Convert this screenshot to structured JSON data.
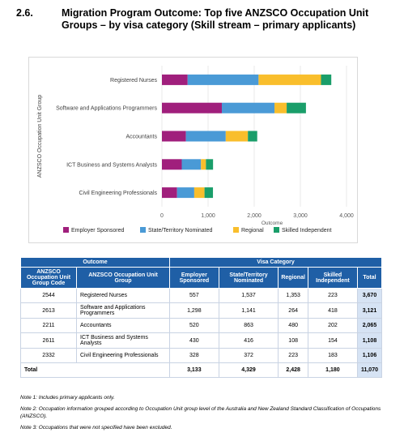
{
  "heading": {
    "number": "2.6.",
    "title": "Migration Program Outcome: Top five ANZSCO Occupation Unit Groups – by visa category (Skill stream – primary applicants)"
  },
  "colors": {
    "employer": "#a01f7c",
    "state": "#4a9ad6",
    "regional": "#f9be2c",
    "skilled": "#1a9e6a",
    "table_header": "#1f5fa6",
    "total_cell": "#d6e3f4"
  },
  "chart_data": {
    "type": "bar",
    "orientation": "horizontal",
    "stacked": true,
    "categories": [
      "Registered Nurses",
      "Software and Applications Programmers",
      "Accountants",
      "ICT Business and Systems Analysts",
      "Civil Engineering Professionals"
    ],
    "series": [
      {
        "name": "Employer Sponsored",
        "values": [
          557,
          1298,
          520,
          430,
          328
        ]
      },
      {
        "name": "State/Territory Nominated",
        "values": [
          1537,
          1141,
          863,
          416,
          372
        ]
      },
      {
        "name": "Regional",
        "values": [
          1353,
          264,
          480,
          108,
          223
        ]
      },
      {
        "name": "Skilled Independent",
        "values": [
          223,
          418,
          202,
          154,
          183
        ]
      }
    ],
    "xlabel": "Outcome",
    "ylabel": "ANZSCO Occupation Unit Group",
    "xlim": [
      0,
      4000
    ],
    "xticks": [
      "0",
      "1,000",
      "2,000",
      "3,000",
      "4,000"
    ],
    "grid": true,
    "legend_position": "bottom"
  },
  "table": {
    "group_header_outcome": "Outcome",
    "group_header_visa": "Visa Category",
    "columns": [
      "ANZSCO Occupation Unit Group Code",
      "ANZSCO Occupation Unit Group",
      "Employer Sponsored",
      "State/Territory Nominated",
      "Regional",
      "Skilled Independent",
      "Total"
    ],
    "rows": [
      {
        "code": "2544",
        "group": "Registered Nurses",
        "employer": "557",
        "state": "1,537",
        "regional": "1,353",
        "skilled": "223",
        "total": "3,670"
      },
      {
        "code": "2613",
        "group": "Software and Applications Programmers",
        "employer": "1,298",
        "state": "1,141",
        "regional": "264",
        "skilled": "418",
        "total": "3,121"
      },
      {
        "code": "2211",
        "group": "Accountants",
        "employer": "520",
        "state": "863",
        "regional": "480",
        "skilled": "202",
        "total": "2,065"
      },
      {
        "code": "2611",
        "group": "ICT Business and Systems Analysts",
        "employer": "430",
        "state": "416",
        "regional": "108",
        "skilled": "154",
        "total": "1,108"
      },
      {
        "code": "2332",
        "group": "Civil Engineering Professionals",
        "employer": "328",
        "state": "372",
        "regional": "223",
        "skilled": "183",
        "total": "1,106"
      }
    ],
    "total_row": {
      "label": "Total",
      "employer": "3,133",
      "state": "4,329",
      "regional": "2,428",
      "skilled": "1,180",
      "total": "11,070"
    }
  },
  "notes": [
    "Note 1: Includes primary applicants only.",
    "Note 2: Occupation information grouped according to Occupation Unit group level of the Australia and New Zealand Standard Classification of Occupations (ANZSCO).",
    "Note 3: Occupations that were not specified have been excluded."
  ]
}
